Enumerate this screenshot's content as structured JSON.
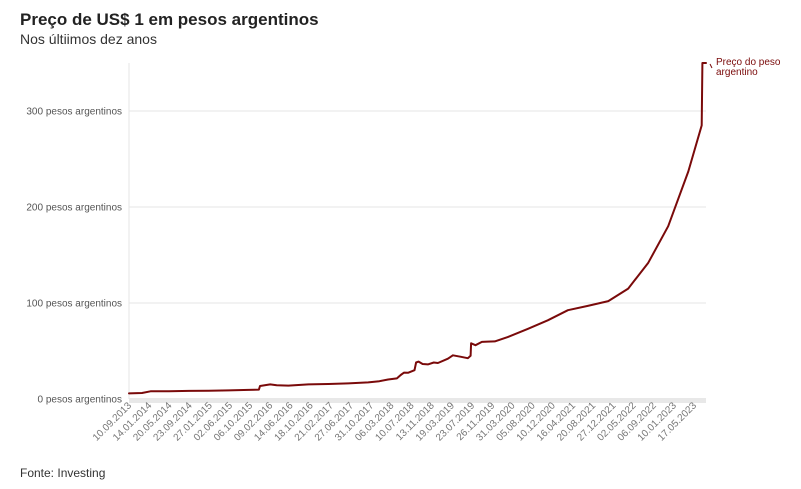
{
  "header": {
    "title": "Preço de US$ 1 em pesos argentinos",
    "subtitle": "Nos últiimos dez anos"
  },
  "footer": {
    "source": "Fonte: Investing"
  },
  "colors": {
    "line": "#7a0a0a",
    "grid": "#e6e6e6",
    "baseline": "#cccccc"
  },
  "chart_data": {
    "type": "line",
    "title": "Preço de US$ 1 em pesos argentinos",
    "subtitle": "Nos últiimos dez anos",
    "xlabel": "",
    "ylabel": "",
    "ylim": [
      0,
      350
    ],
    "grid": true,
    "y_ticks": [
      {
        "value": 0,
        "label": "0 pesos argentinos"
      },
      {
        "value": 100,
        "label": "100 pesos argentinos"
      },
      {
        "value": 200,
        "label": "200 pesos argentinos"
      },
      {
        "value": 300,
        "label": "300 pesos argentinos"
      }
    ],
    "x_ticks": [
      "10.09.2013",
      "14.01.2014",
      "20.05.2014",
      "23.09.2014",
      "27.01.2015",
      "02.06.2015",
      "06.10.2015",
      "09.02.2016",
      "14.06.2016",
      "18.10.2016",
      "21.02.2017",
      "27.06.2017",
      "31.10.2017",
      "06.03.2018",
      "10.07.2018",
      "13.11.2018",
      "19.03.2019",
      "23.07.2019",
      "26.11.2019",
      "31.03.2020",
      "05.08.2020",
      "10.12.2020",
      "16.04.2021",
      "20.08.2021",
      "27.12.2021",
      "02.05.2022",
      "06.09.2022",
      "10.01.2023",
      "17.05.2023"
    ],
    "series": [
      {
        "name": "Preço do peso argentino",
        "points": [
          [
            "2013-09-10",
            5.8
          ],
          [
            "2013-12-01",
            6.2
          ],
          [
            "2014-01-24",
            8.0
          ],
          [
            "2014-05-20",
            8.0
          ],
          [
            "2014-09-23",
            8.4
          ],
          [
            "2015-01-27",
            8.6
          ],
          [
            "2015-06-02",
            9.0
          ],
          [
            "2015-10-06",
            9.5
          ],
          [
            "2015-12-10",
            9.8
          ],
          [
            "2015-12-17",
            13.5
          ],
          [
            "2016-02-20",
            15.2
          ],
          [
            "2016-04-01",
            14.3
          ],
          [
            "2016-06-14",
            14.0
          ],
          [
            "2016-10-18",
            15.2
          ],
          [
            "2017-02-21",
            15.6
          ],
          [
            "2017-06-27",
            16.3
          ],
          [
            "2017-10-31",
            17.3
          ],
          [
            "2018-01-10",
            18.5
          ],
          [
            "2018-03-06",
            20.3
          ],
          [
            "2018-05-01",
            21.5
          ],
          [
            "2018-05-25",
            25.0
          ],
          [
            "2018-06-15",
            27.5
          ],
          [
            "2018-07-10",
            27.3
          ],
          [
            "2018-08-20",
            30.0
          ],
          [
            "2018-08-30",
            38.0
          ],
          [
            "2018-09-15",
            39.0
          ],
          [
            "2018-10-10",
            36.5
          ],
          [
            "2018-11-13",
            36.0
          ],
          [
            "2018-12-20",
            38.0
          ],
          [
            "2019-01-15",
            37.5
          ],
          [
            "2019-03-19",
            42.0
          ],
          [
            "2019-04-20",
            45.5
          ],
          [
            "2019-06-10",
            44.0
          ],
          [
            "2019-07-23",
            42.5
          ],
          [
            "2019-08-10",
            45.0
          ],
          [
            "2019-08-13",
            58.0
          ],
          [
            "2019-09-10",
            56.0
          ],
          [
            "2019-10-20",
            59.5
          ],
          [
            "2019-11-26",
            59.8
          ],
          [
            "2020-01-10",
            60.0
          ],
          [
            "2020-03-31",
            64.5
          ],
          [
            "2020-08-05",
            73.0
          ],
          [
            "2020-12-10",
            82.0
          ],
          [
            "2021-04-16",
            92.5
          ],
          [
            "2021-08-20",
            97.0
          ],
          [
            "2021-12-27",
            102.0
          ],
          [
            "2022-05-02",
            115.0
          ],
          [
            "2022-09-06",
            142.0
          ],
          [
            "2023-01-10",
            180.0
          ],
          [
            "2023-05-17",
            237.0
          ],
          [
            "2023-08-10",
            285.0
          ],
          [
            "2023-08-14",
            350.0
          ],
          [
            "2023-09-06",
            350.0
          ]
        ]
      }
    ]
  }
}
